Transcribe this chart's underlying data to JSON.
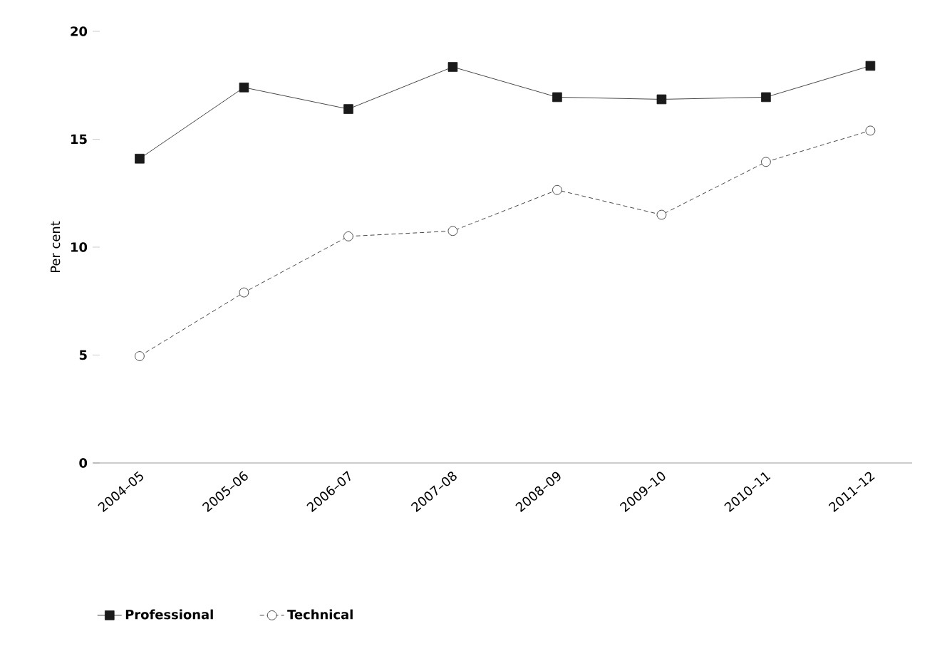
{
  "chart_data": {
    "type": "line",
    "ylabel": "Per cent",
    "categories": [
      "2004–05",
      "2005–06",
      "2006–07",
      "2007–08",
      "2008–09",
      "2009–10",
      "2010–11",
      "2011–12"
    ],
    "series": [
      {
        "name": "Professional",
        "color": "#1a1a1a",
        "marker": "square",
        "line_style": "solid",
        "values": [
          14.1,
          17.4,
          16.4,
          18.35,
          16.95,
          16.85,
          16.95,
          18.4
        ]
      },
      {
        "name": "Technical",
        "color": "#1a1a1a",
        "marker": "circle",
        "line_style": "dashed",
        "values": [
          4.95,
          7.9,
          10.5,
          10.75,
          12.65,
          11.5,
          13.95,
          15.4
        ]
      }
    ],
    "ylim": [
      0,
      20
    ],
    "yticks": [
      0,
      5,
      10,
      15,
      20
    ],
    "grid": false,
    "legend": "bottom"
  }
}
